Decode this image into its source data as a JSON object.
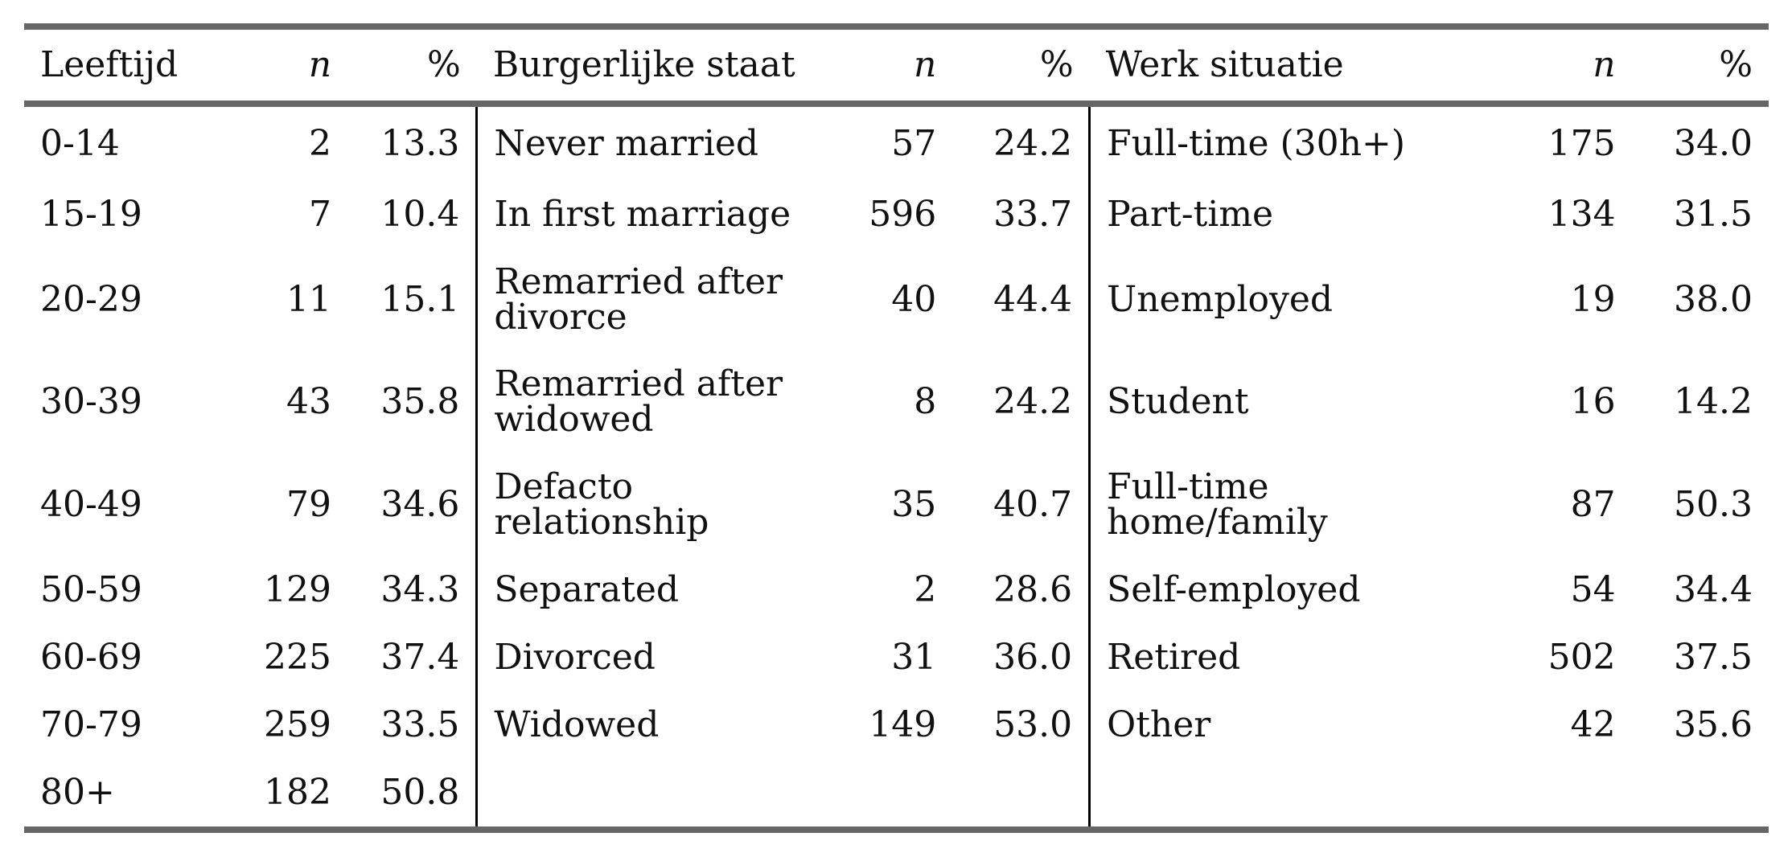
{
  "headers": {
    "age": "Leeftijd",
    "age_n": "n",
    "age_pct": "%",
    "marital": "Burgerlijke staat",
    "marital_n": "n",
    "marital_pct": "%",
    "work": "Werk situatie",
    "work_n": "n",
    "work_pct": "%"
  },
  "rows": [
    {
      "age": "0-14",
      "age_n": "2",
      "age_pct": "13.3",
      "marital": "Never married",
      "marital_n": "57",
      "marital_pct": "24.2",
      "work": "Full-time (30h+)",
      "work_n": "175",
      "work_pct": "34.0"
    },
    {
      "age": "15-19",
      "age_n": "7",
      "age_pct": "10.4",
      "marital": "In first marriage",
      "marital_n": "596",
      "marital_pct": "33.7",
      "work": "Part-time",
      "work_n": "134",
      "work_pct": "31.5"
    },
    {
      "age": "20-29",
      "age_n": "11",
      "age_pct": "15.1",
      "marital": "Remarried after divorce",
      "marital_n": "40",
      "marital_pct": "44.4",
      "work": "Unemployed",
      "work_n": "19",
      "work_pct": "38.0"
    },
    {
      "age": "30-39",
      "age_n": "43",
      "age_pct": "35.8",
      "marital": "Remarried after widowed",
      "marital_n": "8",
      "marital_pct": "24.2",
      "work": "Student",
      "work_n": "16",
      "work_pct": "14.2"
    },
    {
      "age": "40-49",
      "age_n": "79",
      "age_pct": "34.6",
      "marital": "Defacto relationship",
      "marital_n": "35",
      "marital_pct": "40.7",
      "work": "Full-time home/family",
      "work_n": "87",
      "work_pct": "50.3"
    },
    {
      "age": "50-59",
      "age_n": "129",
      "age_pct": "34.3",
      "marital": "Separated",
      "marital_n": "2",
      "marital_pct": "28.6",
      "work": "Self-employed",
      "work_n": "54",
      "work_pct": "34.4"
    },
    {
      "age": "60-69",
      "age_n": "225",
      "age_pct": "37.4",
      "marital": "Divorced",
      "marital_n": "31",
      "marital_pct": "36.0",
      "work": "Retired",
      "work_n": "502",
      "work_pct": "37.5"
    },
    {
      "age": "70-79",
      "age_n": "259",
      "age_pct": "33.5",
      "marital": "Widowed",
      "marital_n": "149",
      "marital_pct": "53.0",
      "work": "Other",
      "work_n": "42",
      "work_pct": "35.6"
    },
    {
      "age": "80+",
      "age_n": "182",
      "age_pct": "50.8",
      "marital": "",
      "marital_n": "",
      "marital_pct": "",
      "work": "",
      "work_n": "",
      "work_pct": ""
    }
  ]
}
